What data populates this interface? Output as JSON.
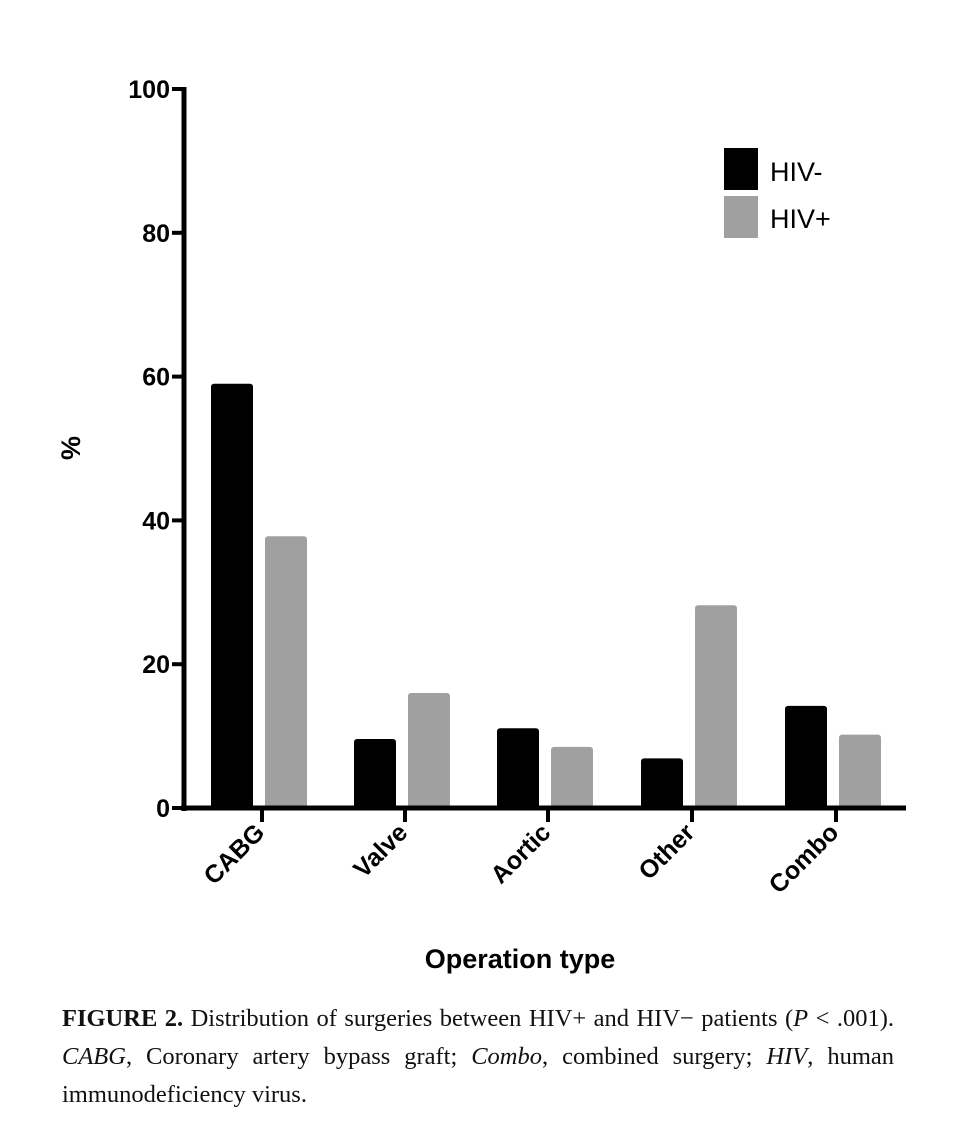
{
  "chart_data": {
    "type": "bar",
    "title": "",
    "xlabel": "Operation type",
    "ylabel": "%",
    "ylim": [
      0,
      100
    ],
    "yticks": [
      0,
      20,
      40,
      60,
      80,
      100
    ],
    "categories": [
      "CABG",
      "Valve",
      "Aortic",
      "Other",
      "Combo"
    ],
    "series": [
      {
        "name": "HIV-",
        "color": "#000000",
        "values": [
          59.0,
          9.6,
          11.1,
          6.9,
          14.2
        ]
      },
      {
        "name": "HIV+",
        "color": "#a0a0a0",
        "values": [
          37.8,
          16.0,
          8.5,
          28.2,
          10.2
        ]
      }
    ],
    "legend_position": "top-right",
    "grid": false
  },
  "caption": {
    "label": "FIGURE 2.",
    "text1": " Distribution of surgeries between HIV+ and HIV− patients (",
    "p": "P",
    "text2": " < .001). ",
    "abbr1": "CABG",
    "text3": ", Coronary artery bypass graft; ",
    "abbr2": "Combo",
    "text4": ", combined surgery; ",
    "abbr3": "HIV",
    "text5": ", human immunodeficiency virus."
  }
}
